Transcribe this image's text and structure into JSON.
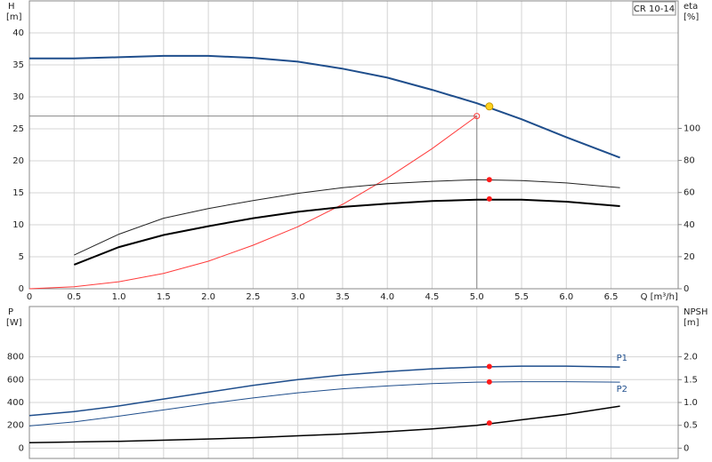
{
  "chart_data": [
    {
      "type": "line",
      "title": "CR 10-14",
      "y_label": "H",
      "y_unit": "[m]",
      "y2_label": "eta",
      "y2_unit": "[%]",
      "x_label": "Q [m³/h]",
      "xlim": [
        0,
        7.25
      ],
      "xticks": [
        0,
        0.5,
        {
          "value": 1,
          "label": "1.0"
        },
        1.5,
        {
          "value": 2,
          "label": "2.0"
        },
        2.5,
        {
          "value": 3,
          "label": "3.0"
        },
        3.5,
        {
          "value": 4,
          "label": "4.0"
        },
        4.5,
        {
          "value": 5,
          "label": "5.0"
        },
        5.5,
        {
          "value": 6,
          "label": "6.0"
        },
        6.5
      ],
      "ylim": [
        0,
        45
      ],
      "yticks": [
        0,
        5,
        10,
        15,
        20,
        25,
        30,
        35,
        40
      ],
      "y2lim": [
        0,
        179.5
      ],
      "y2ticks": [
        0,
        20,
        40,
        60,
        80,
        100
      ],
      "grid": true,
      "series": [
        {
          "color": "#1f4e8c",
          "line_width": 2,
          "x": [
            0,
            0.5,
            1,
            1.5,
            2,
            2.5,
            3,
            3.5,
            4,
            4.5,
            5,
            5.5,
            6,
            6.6
          ],
          "values": [
            36,
            36,
            36.2,
            36.4,
            36.4,
            36.1,
            35.5,
            34.4,
            33,
            31.1,
            29,
            26.5,
            23.7,
            20.5
          ]
        },
        {
          "color": "#ff3b3b",
          "line_width": 1,
          "x": [
            0,
            0.5,
            1,
            1.5,
            2,
            2.5,
            3,
            3.5,
            4,
            4.5,
            5
          ],
          "values": [
            0,
            0.3,
            1.1,
            2.4,
            4.3,
            6.8,
            9.7,
            13.2,
            17.3,
            21.9,
            27
          ]
        },
        {
          "color": "#222222",
          "line_width": 1,
          "axis": "y2",
          "x": [
            0.5,
            1,
            1.5,
            2,
            2.5,
            3,
            3.5,
            4,
            4.5,
            5,
            5.5,
            6,
            6.6
          ],
          "values": [
            21,
            34,
            44,
            50,
            55,
            59.5,
            63,
            65.5,
            67,
            68,
            67.5,
            66,
            63
          ]
        },
        {
          "color": "#000000",
          "line_width": 2,
          "axis": "y2",
          "x": [
            0.5,
            1,
            1.5,
            2,
            2.5,
            3,
            3.5,
            4,
            4.5,
            5,
            5.5,
            6,
            6.6
          ],
          "values": [
            15,
            26,
            33.5,
            39,
            44,
            48,
            51,
            53,
            54.7,
            55.5,
            55.5,
            54.3,
            51.5
          ]
        }
      ],
      "reference": {
        "x": 5.0,
        "y": 27,
        "color": "#888888"
      },
      "points": [
        {
          "x": 5.14,
          "value": 28.5,
          "color": "#ffd21f"
        },
        {
          "x": 5.14,
          "value": 68,
          "axis": "y2",
          "color": "#ff1a1a"
        },
        {
          "x": 5.14,
          "value": 56,
          "axis": "y2",
          "color": "#ff1a1a"
        }
      ]
    },
    {
      "type": "line",
      "y_label": "P",
      "y_unit": "[W]",
      "y2_label": "NPSH",
      "y2_unit": "[m]",
      "xlim": [
        0,
        7.25
      ],
      "xgrid": [
        0.5,
        1,
        1.5,
        2,
        2.5,
        3,
        3.5,
        4,
        4.5,
        5,
        5.5,
        6,
        6.5
      ],
      "ylim": [
        -90,
        1240
      ],
      "yticks": [
        0,
        200,
        400,
        600,
        800
      ],
      "y2lim": [
        -0.225,
        3.1
      ],
      "y2ticks": [
        0,
        0.5,
        {
          "value": 1,
          "label": "1.0"
        },
        1.5,
        {
          "value": 2,
          "label": "2.0"
        }
      ],
      "grid": true,
      "series": [
        {
          "name": "P1",
          "color": "#1f4e8c",
          "line_width": 1.5,
          "x": [
            0,
            0.5,
            1,
            1.5,
            2,
            2.5,
            3,
            3.5,
            4,
            4.5,
            5,
            5.5,
            6,
            6.6
          ],
          "values": [
            285,
            320,
            370,
            430,
            490,
            550,
            600,
            640,
            670,
            695,
            710,
            718,
            718,
            710
          ]
        },
        {
          "name": "P2",
          "color": "#1f4e8c",
          "line_width": 1,
          "x": [
            0,
            0.5,
            1,
            1.5,
            2,
            2.5,
            3,
            3.5,
            4,
            4.5,
            5,
            5.5,
            6,
            6.6
          ],
          "values": [
            195,
            230,
            280,
            335,
            390,
            440,
            485,
            520,
            545,
            565,
            578,
            582,
            582,
            578
          ]
        },
        {
          "color": "#000000",
          "line_width": 1.5,
          "axis": "y2",
          "x": [
            0,
            1,
            2,
            2.5,
            3,
            3.5,
            4,
            4.5,
            5,
            5.5,
            6,
            6.6
          ],
          "values": [
            0.12,
            0.15,
            0.2,
            0.23,
            0.27,
            0.31,
            0.36,
            0.42,
            0.5,
            0.62,
            0.74,
            0.92
          ]
        }
      ],
      "points": [
        {
          "x": 5.14,
          "value": 715,
          "color": "#ff1a1a"
        },
        {
          "x": 5.14,
          "value": 580,
          "color": "#ff1a1a"
        },
        {
          "x": 5.14,
          "value": 0.55,
          "axis": "y2",
          "color": "#ff1a1a"
        }
      ]
    }
  ]
}
